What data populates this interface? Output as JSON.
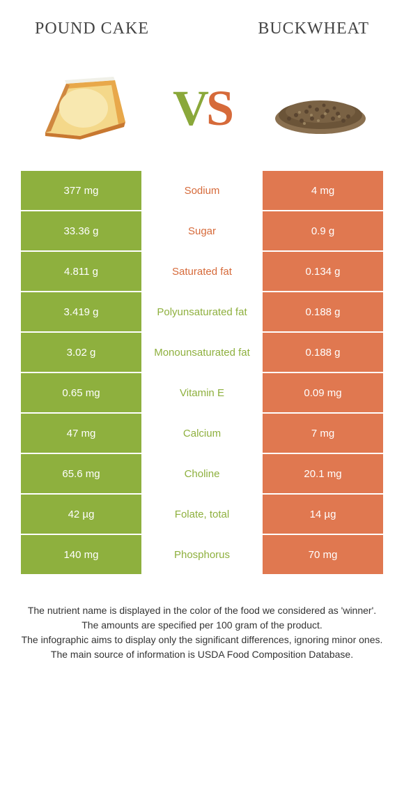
{
  "colors": {
    "green": "#8eb03e",
    "orange": "#e07850",
    "nutrient_green": "#8eb03e",
    "nutrient_orange": "#d66a3a"
  },
  "header": {
    "left": "POUND CAKE",
    "right": "BUCKWHEAT"
  },
  "vs": {
    "v": "V",
    "s": "S"
  },
  "rows": [
    {
      "left": "377 mg",
      "mid": "Sodium",
      "right": "4 mg",
      "winner": "orange"
    },
    {
      "left": "33.36 g",
      "mid": "Sugar",
      "right": "0.9 g",
      "winner": "orange"
    },
    {
      "left": "4.811 g",
      "mid": "Saturated fat",
      "right": "0.134 g",
      "winner": "orange"
    },
    {
      "left": "3.419 g",
      "mid": "Polyunsaturated fat",
      "right": "0.188 g",
      "winner": "green"
    },
    {
      "left": "3.02 g",
      "mid": "Monounsaturated fat",
      "right": "0.188 g",
      "winner": "green"
    },
    {
      "left": "0.65 mg",
      "mid": "Vitamin E",
      "right": "0.09 mg",
      "winner": "green"
    },
    {
      "left": "47 mg",
      "mid": "Calcium",
      "right": "7 mg",
      "winner": "green"
    },
    {
      "left": "65.6 mg",
      "mid": "Choline",
      "right": "20.1 mg",
      "winner": "green"
    },
    {
      "left": "42 µg",
      "mid": "Folate, total",
      "right": "14 µg",
      "winner": "green"
    },
    {
      "left": "140 mg",
      "mid": "Phosphorus",
      "right": "70 mg",
      "winner": "green"
    }
  ],
  "footer": {
    "l1": "The nutrient name is displayed in the color of the food we considered as 'winner'.",
    "l2": "The amounts are specified per 100 gram of the product.",
    "l3": "The infographic aims to display only the significant differences, ignoring minor ones.",
    "l4": "The main source of information is USDA Food Composition Database."
  }
}
